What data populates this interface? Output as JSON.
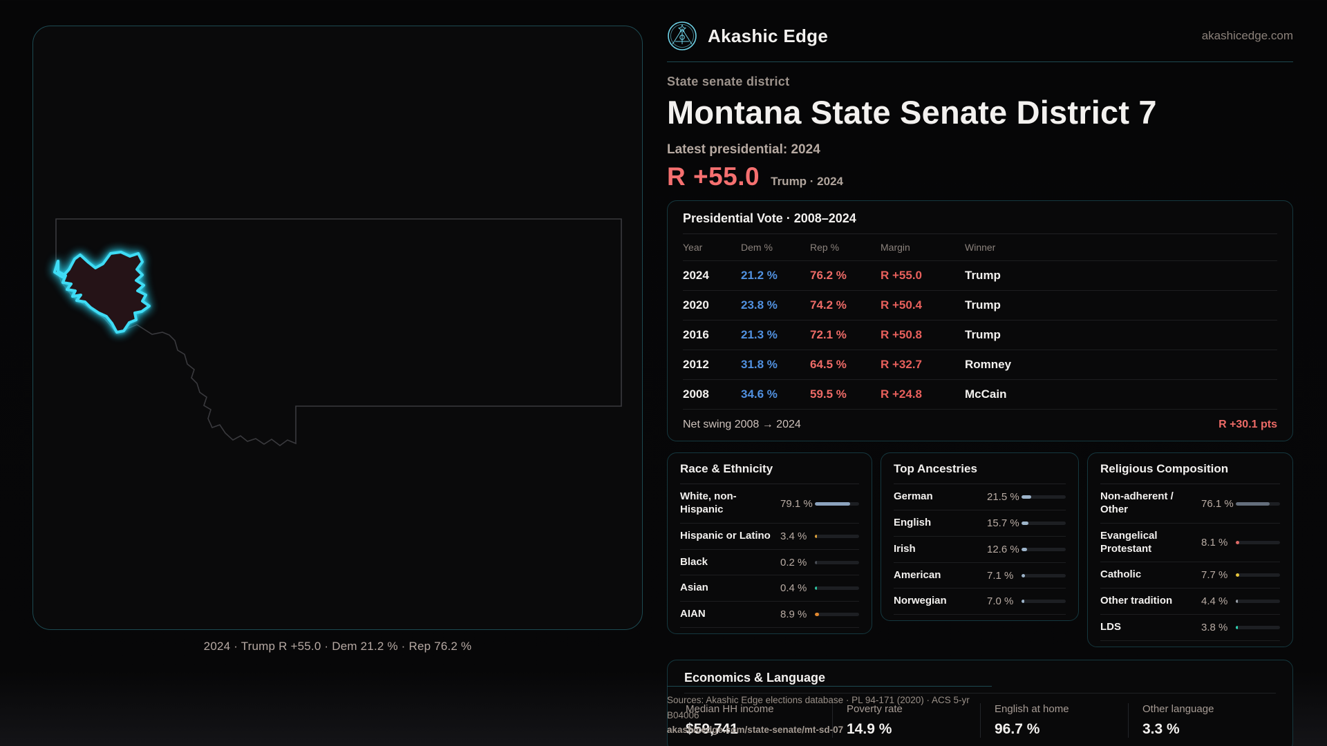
{
  "brand": {
    "name": "Akashic Edge",
    "domain": "akashicedge.com",
    "logo_color": "#6fd3e8"
  },
  "map": {
    "caption": "2024 · Trump R +55.0 · Dem 21.2 % · Rep 76.2 %",
    "district_fill": "#251317",
    "district_stroke": "#3fdcf5",
    "state_outline_color": "#3a3a3e"
  },
  "header": {
    "category_label": "State senate district",
    "title": "Montana State Senate District 7",
    "latest_label": "Latest presidential: 2024",
    "margin_value": "R +55.0",
    "margin_context": "Trump · 2024"
  },
  "presidential": {
    "title": "Presidential Vote · 2008–2024",
    "columns": [
      "Year",
      "Dem %",
      "Rep %",
      "Margin",
      "Winner"
    ],
    "rows": [
      {
        "year": "2024",
        "dem": "21.2 %",
        "rep": "76.2 %",
        "margin": "R +55.0",
        "winner": "Trump"
      },
      {
        "year": "2020",
        "dem": "23.8 %",
        "rep": "74.2 %",
        "margin": "R +50.4",
        "winner": "Trump"
      },
      {
        "year": "2016",
        "dem": "21.3 %",
        "rep": "72.1 %",
        "margin": "R +50.8",
        "winner": "Trump"
      },
      {
        "year": "2012",
        "dem": "31.8 %",
        "rep": "64.5 %",
        "margin": "R +32.7",
        "winner": "Romney"
      },
      {
        "year": "2008",
        "dem": "34.6 %",
        "rep": "59.5 %",
        "margin": "R +24.8",
        "winner": "McCain"
      }
    ],
    "footer_label": "Net swing 2008 → 2024",
    "footer_value": "R +30.1 pts"
  },
  "demographics": [
    {
      "id": "race",
      "title": "Race & Ethnicity",
      "rows": [
        {
          "label": "White, non-Hispanic",
          "value": "79.1 %",
          "pct": 79.1,
          "color": "#8ca3be"
        },
        {
          "label": "Hispanic or Latino",
          "value": "3.4 %",
          "pct": 3.4,
          "color": "#e0a33c"
        },
        {
          "label": "Black",
          "value": "0.2 %",
          "pct": 0.2,
          "color": "#4a4e55"
        },
        {
          "label": "Asian",
          "value": "0.4 %",
          "pct": 0.4,
          "color": "#2ec4a0"
        },
        {
          "label": "AIAN",
          "value": "8.9 %",
          "pct": 8.9,
          "color": "#e2882f"
        }
      ]
    },
    {
      "id": "ancestries",
      "title": "Top Ancestries",
      "rows": [
        {
          "label": "German",
          "value": "21.5 %",
          "pct": 21.5,
          "color": "#9db4ca"
        },
        {
          "label": "English",
          "value": "15.7 %",
          "pct": 15.7,
          "color": "#9db4ca"
        },
        {
          "label": "Irish",
          "value": "12.6 %",
          "pct": 12.6,
          "color": "#9db4ca"
        },
        {
          "label": "American",
          "value": "7.1 %",
          "pct": 7.1,
          "color": "#9db4ca"
        },
        {
          "label": "Norwegian",
          "value": "7.0 %",
          "pct": 7.0,
          "color": "#9db4ca"
        }
      ]
    },
    {
      "id": "religion",
      "title": "Religious Composition",
      "rows": [
        {
          "label": "Non-adherent / Other",
          "value": "76.1 %",
          "pct": 76.1,
          "color": "#646e7c"
        },
        {
          "label": "Evangelical Protestant",
          "value": "8.1 %",
          "pct": 8.1,
          "color": "#e16a66"
        },
        {
          "label": "Catholic",
          "value": "7.7 %",
          "pct": 7.7,
          "color": "#e7c53c"
        },
        {
          "label": "Other tradition",
          "value": "4.4 %",
          "pct": 4.4,
          "color": "#9aa0a8"
        },
        {
          "label": "LDS",
          "value": "3.8 %",
          "pct": 3.8,
          "color": "#2fd4b4"
        }
      ]
    }
  ],
  "economics": {
    "title": "Economics & Language",
    "stats": [
      {
        "label": "Median HH income",
        "value": "$59,741"
      },
      {
        "label": "Poverty rate",
        "value": "14.9 %"
      },
      {
        "label": "English at home",
        "value": "96.7 %"
      },
      {
        "label": "Other language",
        "value": "3.3 %"
      }
    ]
  },
  "src_footer": {
    "line1": "Sources: Akashic Edge elections database · PL 94-171 (2020) · ACS 5-yr B04006",
    "line2": "akashicedge.com/state-senate/mt-sd-07"
  },
  "colors": {
    "dem": "#5191e0",
    "rep": "#ee6b67",
    "margin_red": "#e8605c",
    "accent_teal": "#1d4a52"
  }
}
